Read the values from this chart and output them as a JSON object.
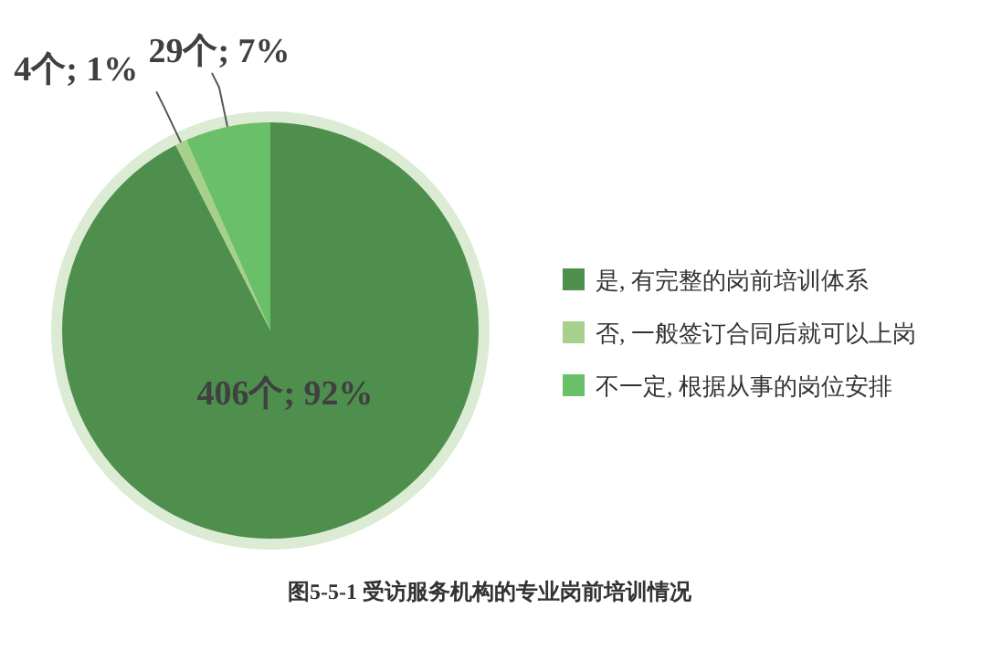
{
  "chart_data": {
    "type": "pie",
    "title": "图5-5-1 受访服务机构的专业岗前培训情况",
    "categories": [
      "是, 有完整的岗前培训体系",
      "否, 一般签订合同后就可以上岗",
      "不一定, 根据从事的岗位安排"
    ],
    "values": [
      406,
      4,
      29
    ],
    "colors": [
      "#4e8f4e",
      "#a8d08d",
      "#6abf69"
    ],
    "value_labels": [
      "406个; 92%",
      "4个; 1%",
      "29个; 7%"
    ],
    "legend": "right"
  }
}
